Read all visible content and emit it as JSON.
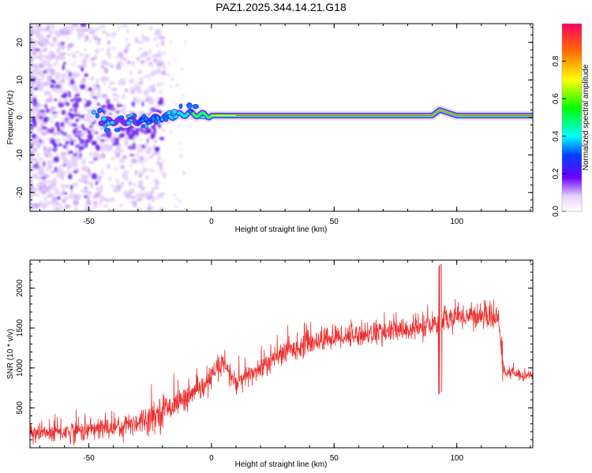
{
  "title": "PAZ1.2025.344.14.21.G18",
  "chart_data": [
    {
      "type": "heatmap",
      "xlabel": "Height of straight line (km)",
      "ylabel": "Frequency (Hz)",
      "xlim": [
        -74,
        131
      ],
      "ylim": [
        -25,
        25
      ],
      "xticks": [
        -50,
        0,
        50,
        100
      ],
      "yticks": [
        -20,
        -10,
        0,
        10,
        20
      ],
      "colorbar": {
        "label": "Normalized spectral amplitude",
        "range": [
          0,
          1
        ],
        "ticks": [
          "0.0",
          "0.2",
          "0.4",
          "0.6",
          "0.8"
        ]
      },
      "ridge_centerline": [
        {
          "x": -45,
          "y": -1
        },
        {
          "x": -30,
          "y": -1
        },
        {
          "x": -20,
          "y": 0
        },
        {
          "x": -10,
          "y": 1
        },
        {
          "x": 0,
          "y": 0.5
        },
        {
          "x": 20,
          "y": 0.5
        },
        {
          "x": 50,
          "y": 0.5
        },
        {
          "x": 90,
          "y": 0.5
        },
        {
          "x": 93,
          "y": 2
        },
        {
          "x": 100,
          "y": 0.5
        },
        {
          "x": 131,
          "y": 0.5
        }
      ]
    },
    {
      "type": "line",
      "xlabel": "Height of straight line (km)",
      "ylabel": "SNR (10 * v/v)",
      "xlim": [
        -74,
        131
      ],
      "ylim": [
        0,
        2350
      ],
      "xticks": [
        -50,
        0,
        50,
        100
      ],
      "yticks": [
        500,
        1000,
        1500,
        2000
      ],
      "series_color": "#ee3030",
      "trend": [
        {
          "x": -74,
          "y": 170
        },
        {
          "x": -60,
          "y": 200
        },
        {
          "x": -45,
          "y": 240
        },
        {
          "x": -35,
          "y": 280
        },
        {
          "x": -25,
          "y": 380
        },
        {
          "x": -15,
          "y": 550
        },
        {
          "x": -3,
          "y": 750
        },
        {
          "x": 0,
          "y": 900
        },
        {
          "x": 5,
          "y": 1050
        },
        {
          "x": 10,
          "y": 800
        },
        {
          "x": 15,
          "y": 900
        },
        {
          "x": 20,
          "y": 1000
        },
        {
          "x": 30,
          "y": 1200
        },
        {
          "x": 40,
          "y": 1320
        },
        {
          "x": 50,
          "y": 1380
        },
        {
          "x": 60,
          "y": 1420
        },
        {
          "x": 70,
          "y": 1450
        },
        {
          "x": 80,
          "y": 1480
        },
        {
          "x": 90,
          "y": 1520
        },
        {
          "x": 94,
          "y": 1600
        },
        {
          "x": 100,
          "y": 1650
        },
        {
          "x": 110,
          "y": 1650
        },
        {
          "x": 117,
          "y": 1620
        },
        {
          "x": 119,
          "y": 950
        },
        {
          "x": 131,
          "y": 900
        }
      ]
    }
  ]
}
